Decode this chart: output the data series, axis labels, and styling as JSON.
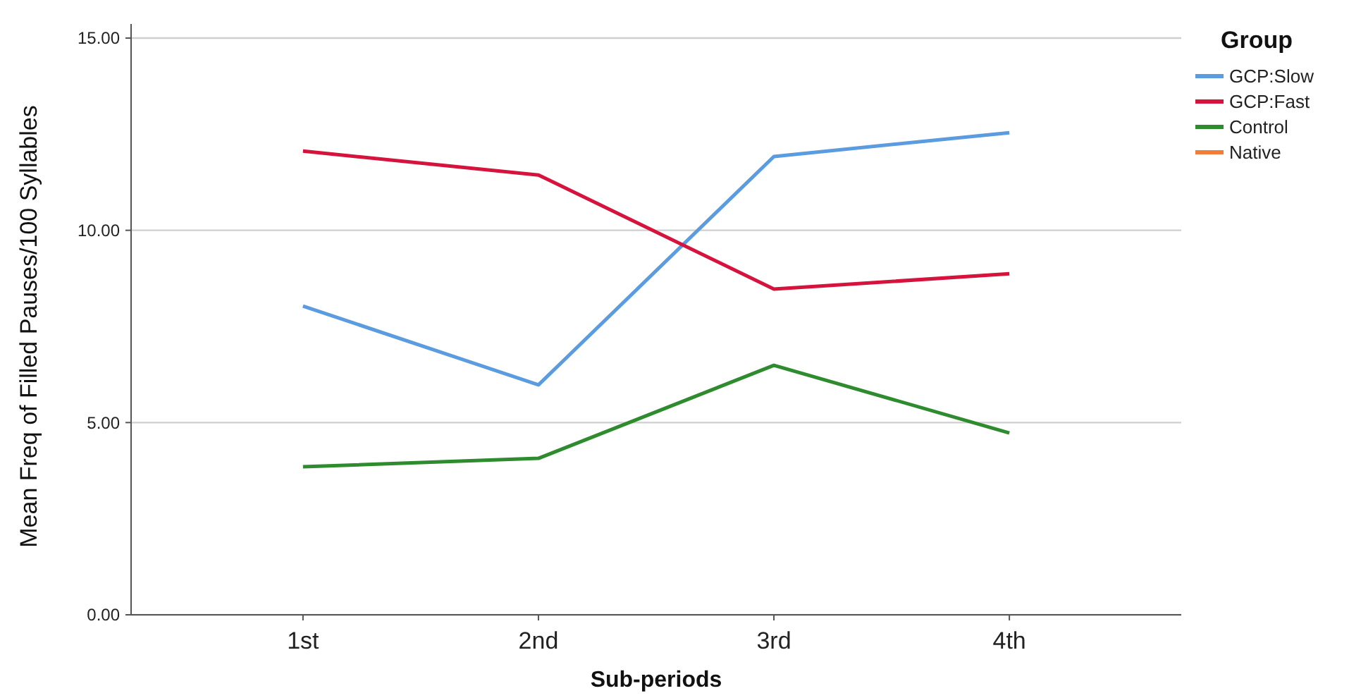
{
  "chart_data": {
    "type": "line",
    "xlabel": "Sub-periods",
    "ylabel": "Mean Freq of Filled Pauses/100 Syllables",
    "legend_title": "Group",
    "categories": [
      "1st",
      "2nd",
      "3rd",
      "4th"
    ],
    "series": [
      {
        "name": "GCP:Slow",
        "color": "#5b9be0",
        "values": [
          8.03,
          5.98,
          11.92,
          12.54
        ]
      },
      {
        "name": "GCP:Fast",
        "color": "#d6133c",
        "values": [
          12.06,
          11.44,
          8.47,
          8.87
        ]
      },
      {
        "name": "Control",
        "color": "#2e8b2e",
        "values": [
          3.85,
          4.07,
          6.49,
          4.73
        ]
      },
      {
        "name": "Native",
        "color": "#f07d3a",
        "values": [
          null,
          null,
          null,
          null
        ]
      }
    ],
    "ylim": [
      0,
      15
    ],
    "yticks": [
      {
        "value": 0,
        "label": "0.00"
      },
      {
        "value": 5,
        "label": "5.00"
      },
      {
        "value": 10,
        "label": "10.00"
      },
      {
        "value": 15,
        "label": "15.00"
      }
    ],
    "grid": "y",
    "legend": "top right",
    "marker": "none",
    "line_style": "solid"
  }
}
